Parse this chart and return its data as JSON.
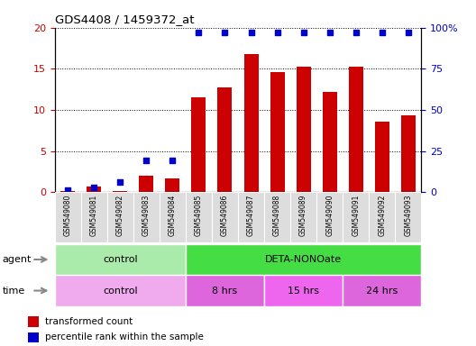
{
  "title": "GDS4408 / 1459372_at",
  "samples": [
    "GSM549080",
    "GSM549081",
    "GSM549082",
    "GSM549083",
    "GSM549084",
    "GSM549085",
    "GSM549086",
    "GSM549087",
    "GSM549088",
    "GSM549089",
    "GSM549090",
    "GSM549091",
    "GSM549092",
    "GSM549093"
  ],
  "transformed_count": [
    0.1,
    0.7,
    0.1,
    2.0,
    1.7,
    11.5,
    12.7,
    16.8,
    14.6,
    15.3,
    12.2,
    15.2,
    8.6,
    9.3
  ],
  "percentile_rank": [
    1,
    3,
    6,
    19,
    19,
    97,
    97,
    97,
    97,
    97,
    97,
    97,
    97,
    97
  ],
  "bar_color": "#cc0000",
  "dot_color": "#0000cc",
  "ylim_left": [
    0,
    20
  ],
  "ylim_right": [
    0,
    100
  ],
  "yticks_left": [
    0,
    5,
    10,
    15,
    20
  ],
  "yticks_right": [
    0,
    25,
    50,
    75,
    100
  ],
  "ytick_labels_right": [
    "0",
    "25",
    "50",
    "75",
    "100%"
  ],
  "agent_groups": [
    {
      "label": "control",
      "start": 0,
      "end": 5,
      "color": "#aaeaaa"
    },
    {
      "label": "DETA-NONOate",
      "start": 5,
      "end": 14,
      "color": "#44dd44"
    }
  ],
  "time_groups": [
    {
      "label": "control",
      "start": 0,
      "end": 5,
      "color": "#f0aaee"
    },
    {
      "label": "8 hrs",
      "start": 5,
      "end": 8,
      "color": "#dd66dd"
    },
    {
      "label": "15 hrs",
      "start": 8,
      "end": 11,
      "color": "#ee66ee"
    },
    {
      "label": "24 hrs",
      "start": 11,
      "end": 14,
      "color": "#dd66dd"
    }
  ],
  "legend_items": [
    {
      "label": "transformed count",
      "color": "#cc0000"
    },
    {
      "label": "percentile rank within the sample",
      "color": "#0000cc"
    }
  ],
  "tick_label_color_left": "#cc0000",
  "tick_label_color_right": "#0000cc",
  "xtick_bg_color": "#dddddd",
  "agent_label_color": "#888888",
  "time_label_color": "#888888"
}
